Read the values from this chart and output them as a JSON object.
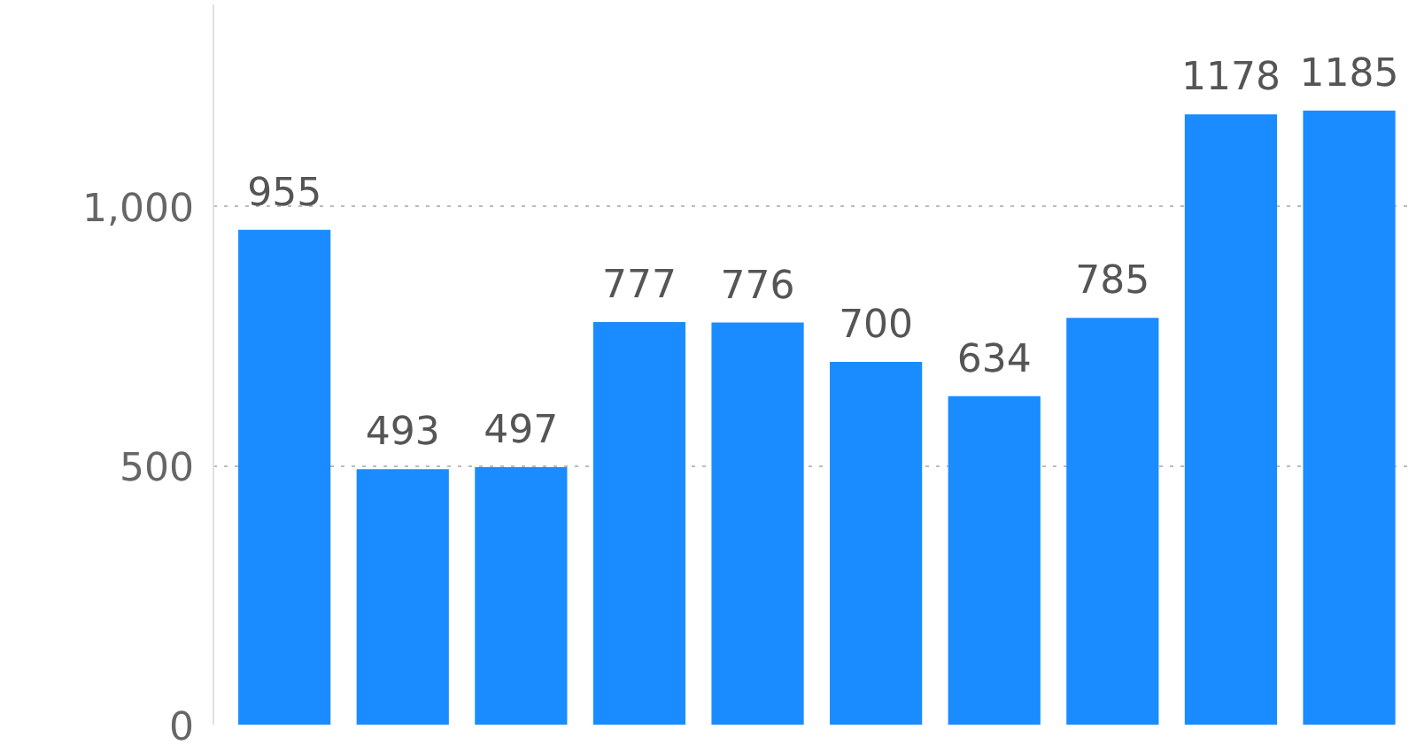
{
  "chart_data": {
    "type": "bar",
    "categories": [
      null,
      null,
      null,
      null,
      null,
      null,
      null,
      null,
      null,
      null
    ],
    "values": [
      955,
      493,
      497,
      777,
      776,
      700,
      634,
      785,
      1178,
      1185
    ],
    "color": "#1a8cff",
    "ylim": [
      0,
      1390
    ],
    "yticks": [
      0,
      500,
      {
        "value": 1000,
        "label": "1,000"
      }
    ],
    "grid": "y",
    "data_labels": true,
    "tick_labels": "y"
  }
}
